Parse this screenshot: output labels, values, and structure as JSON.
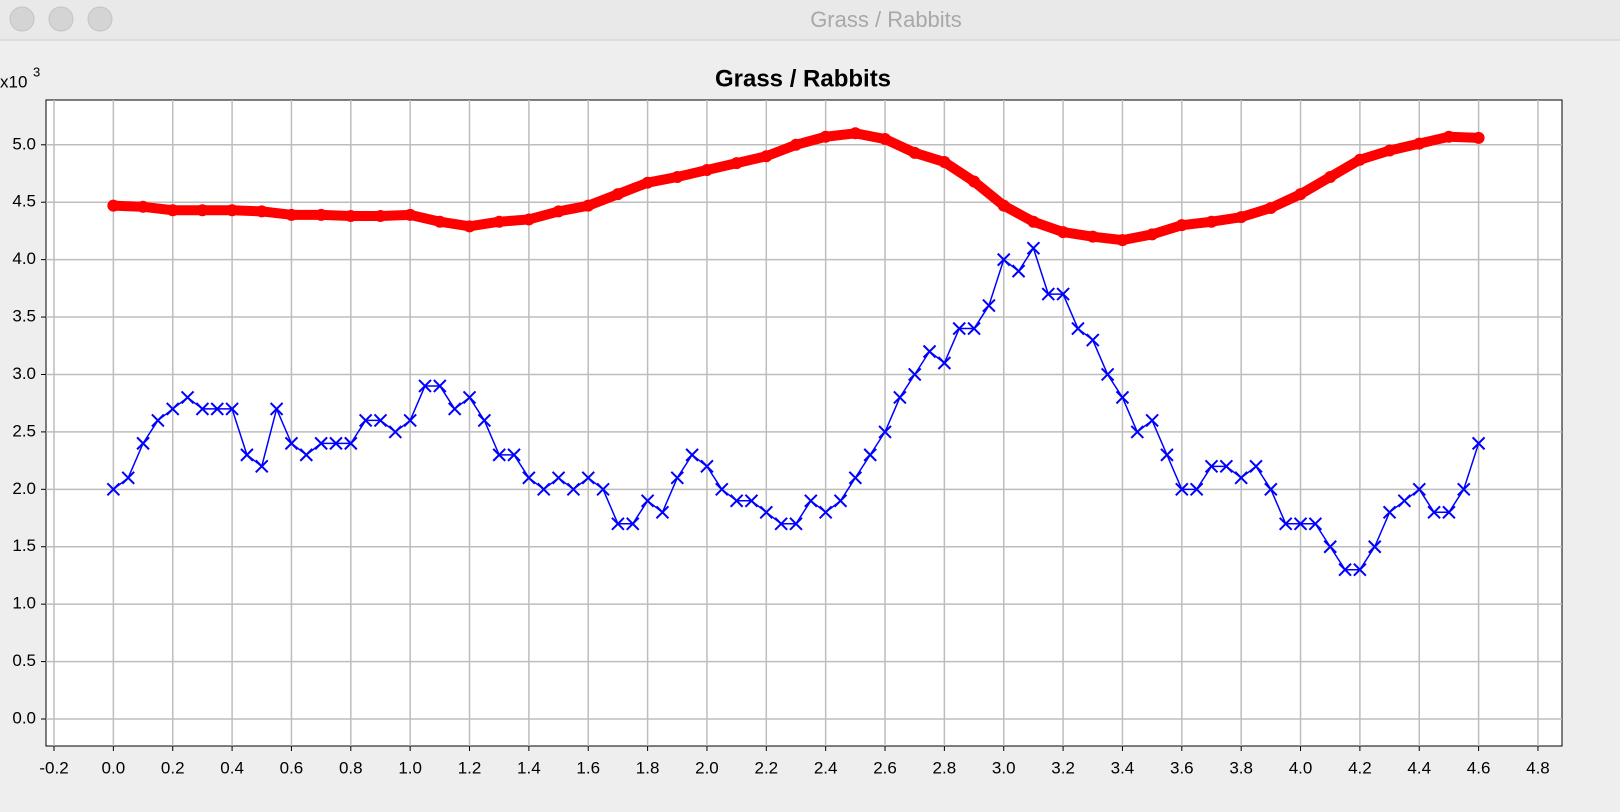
{
  "window": {
    "title": "Grass / Rabbits"
  },
  "chart_data": {
    "type": "line",
    "title": "Grass / Rabbits",
    "y_unit_base": "x10",
    "y_unit_exponent": "3",
    "xlim": [
      -0.227,
      4.881
    ],
    "ylim": [
      -0.235,
      5.39
    ],
    "grid": true,
    "xticks": [
      -0.2,
      {
        "value": 0,
        "label": "0.0"
      },
      0.2,
      0.4,
      0.6,
      0.8,
      {
        "value": 1,
        "label": "1.0"
      },
      1.2,
      1.4,
      1.6,
      1.8,
      {
        "value": 2,
        "label": "2.0"
      },
      2.2,
      2.4,
      2.6,
      2.8,
      {
        "value": 3,
        "label": "3.0"
      },
      3.2,
      3.4,
      3.6,
      3.8,
      {
        "value": 4,
        "label": "4.0"
      },
      4.2,
      4.4,
      4.6,
      4.8
    ],
    "yticks": [
      {
        "value": 0,
        "label": "0.0"
      },
      0.5,
      {
        "value": 1,
        "label": "1.0"
      },
      1.5,
      {
        "value": 2,
        "label": "2.0"
      },
      2.5,
      {
        "value": 3,
        "label": "3.0"
      },
      3.5,
      {
        "value": 4,
        "label": "4.0"
      },
      4.5,
      {
        "value": 5,
        "label": "5.0"
      }
    ],
    "series": [
      {
        "color": "#ff0000",
        "marker": "circle",
        "x": [
          0,
          0.1,
          0.2,
          0.3,
          0.4,
          0.5,
          0.6,
          0.7,
          0.8,
          0.9,
          1,
          1.1,
          1.2,
          1.3,
          1.4,
          1.5,
          1.6,
          1.7,
          1.8,
          1.9,
          2,
          2.1,
          2.2,
          2.3,
          2.4,
          2.5,
          2.6,
          2.7,
          2.8,
          2.9,
          3,
          3.1,
          3.2,
          3.3,
          3.4,
          3.5,
          3.6,
          3.7,
          3.8,
          3.9,
          4,
          4.1,
          4.2,
          4.3,
          4.4,
          4.5,
          4.6
        ],
        "values": [
          4.47,
          4.46,
          4.43,
          4.43,
          4.43,
          4.42,
          4.39,
          4.39,
          4.38,
          4.38,
          4.39,
          4.33,
          4.29,
          4.33,
          4.35,
          4.42,
          4.47,
          4.57,
          4.67,
          4.72,
          4.78,
          4.84,
          4.9,
          5.0,
          5.07,
          5.1,
          5.05,
          4.93,
          4.85,
          4.68,
          4.47,
          4.33,
          4.24,
          4.2,
          4.17,
          4.22,
          4.3,
          4.33,
          4.37,
          4.45,
          4.57,
          4.72,
          4.87,
          4.95,
          5.01,
          5.07,
          5.06
        ]
      },
      {
        "color": "#0000ff",
        "marker": "cross",
        "x": [
          0,
          0.05,
          0.1,
          0.15,
          0.2,
          0.25,
          0.3,
          0.35,
          0.4,
          0.45,
          0.5,
          0.55,
          0.6,
          0.65,
          0.7,
          0.75,
          0.8,
          0.85,
          0.9,
          0.95,
          1,
          1.05,
          1.1,
          1.15,
          1.2,
          1.25,
          1.3,
          1.35,
          1.4,
          1.45,
          1.5,
          1.55,
          1.6,
          1.65,
          1.7,
          1.75,
          1.8,
          1.85,
          1.9,
          1.95,
          2,
          2.05,
          2.1,
          2.15,
          2.2,
          2.25,
          2.3,
          2.35,
          2.4,
          2.45,
          2.5,
          2.55,
          2.6,
          2.65,
          2.7,
          2.75,
          2.8,
          2.85,
          2.9,
          2.95,
          3,
          3.05,
          3.1,
          3.15,
          3.2,
          3.25,
          3.3,
          3.35,
          3.4,
          3.45,
          3.5,
          3.55,
          3.6,
          3.65,
          3.7,
          3.75,
          3.8,
          3.85,
          3.9,
          3.95,
          4,
          4.05,
          4.1,
          4.15,
          4.2,
          4.25,
          4.3,
          4.35,
          4.4,
          4.45,
          4.5,
          4.55,
          4.6
        ],
        "values": [
          2.0,
          2.1,
          2.4,
          2.6,
          2.7,
          2.8,
          2.7,
          2.7,
          2.7,
          2.3,
          2.2,
          2.7,
          2.4,
          2.3,
          2.4,
          2.4,
          2.4,
          2.6,
          2.6,
          2.5,
          2.6,
          2.9,
          2.9,
          2.7,
          2.8,
          2.6,
          2.3,
          2.3,
          2.1,
          2.0,
          2.1,
          2.0,
          2.1,
          2.0,
          1.7,
          1.7,
          1.9,
          1.8,
          2.1,
          2.3,
          2.2,
          2.0,
          1.9,
          1.9,
          1.8,
          1.7,
          1.7,
          1.9,
          1.8,
          1.9,
          2.1,
          2.3,
          2.5,
          2.8,
          3.0,
          3.2,
          3.1,
          3.4,
          3.4,
          3.6,
          4.0,
          3.9,
          4.1,
          3.7,
          3.7,
          3.4,
          3.3,
          3.0,
          2.8,
          2.5,
          2.6,
          2.3,
          2.0,
          2.0,
          2.2,
          2.2,
          2.1,
          2.2,
          2.0,
          1.7,
          1.7,
          1.7,
          1.5,
          1.3,
          1.3,
          1.5,
          1.8,
          1.9,
          2.0,
          1.8,
          1.8,
          2.0,
          2.4
        ]
      }
    ]
  }
}
